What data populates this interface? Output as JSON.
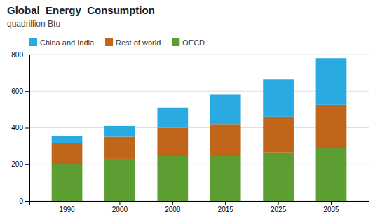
{
  "chart_data": {
    "type": "bar",
    "stacked": true,
    "title": "Global  Energy  Consumption",
    "subtitle": "quadrillion Btu",
    "categories": [
      "1990",
      "2000",
      "2008",
      "2015",
      "2025",
      "2035"
    ],
    "series": [
      {
        "name": "OECD",
        "color": "#5C9E31",
        "values": [
          200,
          230,
          245,
          245,
          265,
          290
        ]
      },
      {
        "name": "Rest of world",
        "color": "#C1651A",
        "values": [
          115,
          120,
          155,
          175,
          195,
          235
        ]
      },
      {
        "name": "China and India",
        "color": "#29ABE2",
        "values": [
          40,
          60,
          110,
          160,
          205,
          255
        ]
      }
    ],
    "ylim": [
      0,
      800
    ],
    "yticks": [
      0,
      200,
      400,
      600,
      800
    ],
    "grid": true,
    "legend": "top"
  }
}
